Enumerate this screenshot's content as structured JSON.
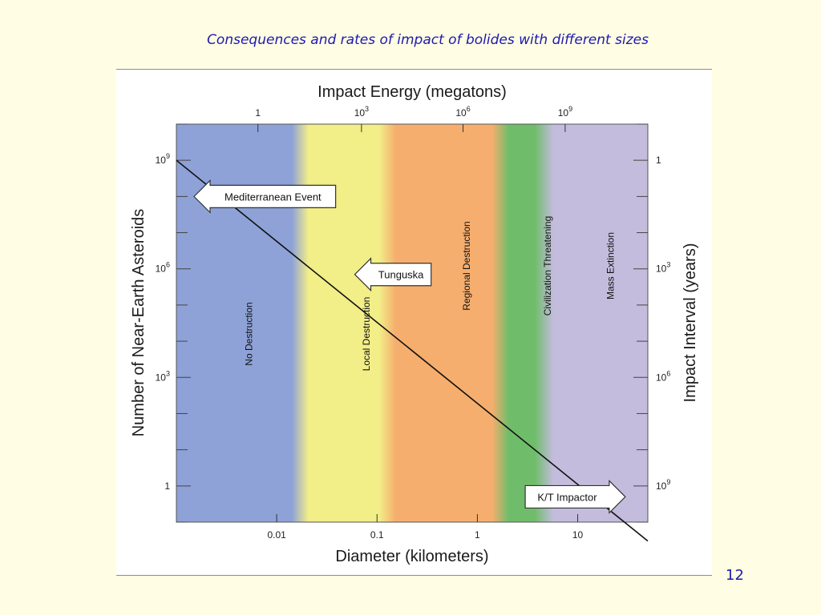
{
  "slide": {
    "title": "Consequences and rates of impact of bolides with different sizes",
    "page_number": "12"
  },
  "chart_data": {
    "type": "line",
    "top_axis": {
      "label": "Impact Energy (megatons)",
      "ticks": [
        {
          "value": 1,
          "label": "1"
        },
        {
          "value": 1000,
          "label": "10",
          "exp": "3"
        },
        {
          "value": 1000000,
          "label": "10",
          "exp": "6"
        },
        {
          "value": 1000000000,
          "label": "10",
          "exp": "9"
        }
      ]
    },
    "x_axis": {
      "label": "Diameter (kilometers)",
      "scale": "log",
      "range": [
        0.001,
        50
      ],
      "ticks": [
        {
          "value": 0.01,
          "label": "0.01"
        },
        {
          "value": 0.1,
          "label": "0.1"
        },
        {
          "value": 1,
          "label": "1"
        },
        {
          "value": 10,
          "label": "10"
        }
      ]
    },
    "y_axis": {
      "label": "Number of Near-Earth Asteroids",
      "scale": "log",
      "range": [
        0.1,
        10000000000
      ],
      "ticks": [
        {
          "value": 1,
          "label": "1"
        },
        {
          "value": 1000,
          "label": "10",
          "exp": "3"
        },
        {
          "value": 1000000,
          "label": "10",
          "exp": "6"
        },
        {
          "value": 1000000000,
          "label": "10",
          "exp": "9"
        }
      ]
    },
    "right_axis": {
      "label": "Impact Interval (years)",
      "ticks": [
        {
          "y_equiv": 1000000000,
          "label": "1"
        },
        {
          "y_equiv": 1000000,
          "label": "10",
          "exp": "3"
        },
        {
          "y_equiv": 1000,
          "label": "10",
          "exp": "6"
        },
        {
          "y_equiv": 1,
          "label": "10",
          "exp": "9"
        }
      ]
    },
    "series": [
      {
        "x": [
          0.001,
          50
        ],
        "y": [
          1000000000,
          0.03
        ]
      }
    ],
    "bands": [
      {
        "label": "No Destruction",
        "from": 0.001,
        "to": 0.028,
        "color": "#8ea2d8"
      },
      {
        "label": "Local Destruction",
        "from": 0.028,
        "to": 0.22,
        "color": "#f2ee88"
      },
      {
        "label": "Regional Destruction",
        "from": 0.22,
        "to": 2.8,
        "color": "#f6ae6e"
      },
      {
        "label": "Civilization Threatening",
        "from": 2.8,
        "to": 9,
        "color": "#6fbd6a"
      },
      {
        "label": "Mass Extinction",
        "from": 9,
        "to": 50,
        "color": "#c4bcdd"
      }
    ],
    "annotations": [
      {
        "label": "Mediterranean Event",
        "x": 0.0015,
        "y": 100000000,
        "direction": "left"
      },
      {
        "label": "Tunguska",
        "x": 0.06,
        "y": 700000,
        "direction": "left"
      },
      {
        "label": "K/T Impactor",
        "x": 3,
        "y": 0.5,
        "direction": "right"
      }
    ]
  }
}
